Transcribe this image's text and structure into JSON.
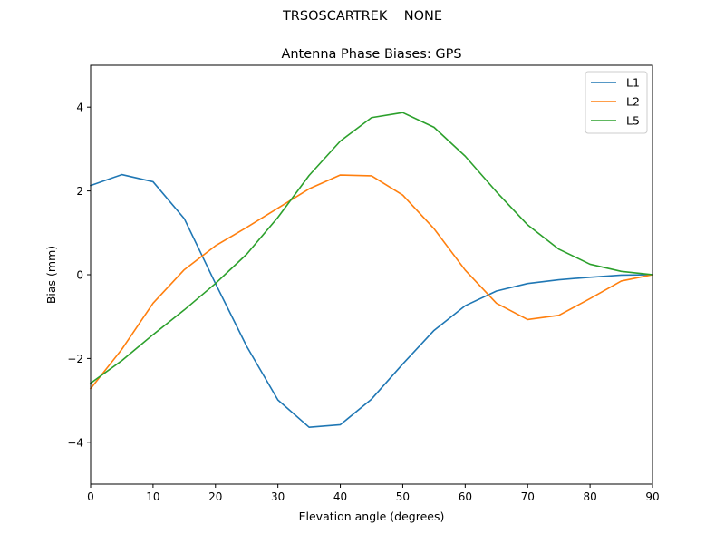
{
  "figure": {
    "suptitle": "TRSOSCARTREK    NONE"
  },
  "chart_data": {
    "type": "line",
    "title": "Antenna Phase Biases: GPS",
    "xlabel": "Elevation angle (degrees)",
    "ylabel": "Bias (mm)",
    "xlim": [
      0,
      90
    ],
    "ylim": [
      -5,
      5
    ],
    "xticks": [
      0,
      10,
      20,
      30,
      40,
      50,
      60,
      70,
      80,
      90
    ],
    "yticks": [
      -4,
      -2,
      0,
      2,
      4
    ],
    "ytick_labels": [
      "−4",
      "−2",
      "0",
      "2",
      "4"
    ],
    "legend_position": "top-right",
    "grid": false,
    "x": [
      0,
      5,
      10,
      15,
      20,
      25,
      30,
      35,
      40,
      45,
      50,
      55,
      60,
      65,
      70,
      75,
      80,
      85,
      90
    ],
    "series": [
      {
        "name": "L1",
        "color": "#1f77b4",
        "values": [
          2.13,
          2.39,
          2.22,
          1.34,
          -0.21,
          -1.71,
          -2.99,
          -3.64,
          -3.58,
          -2.97,
          -2.13,
          -1.33,
          -0.74,
          -0.39,
          -0.21,
          -0.12,
          -0.06,
          -0.01,
          0.0
        ]
      },
      {
        "name": "L2",
        "color": "#ff7f0e",
        "values": [
          -2.72,
          -1.78,
          -0.68,
          0.12,
          0.69,
          1.13,
          1.59,
          2.05,
          2.38,
          2.36,
          1.9,
          1.1,
          0.11,
          -0.68,
          -1.07,
          -0.97,
          -0.57,
          -0.15,
          0.0
        ]
      },
      {
        "name": "L5",
        "color": "#2ca02c",
        "values": [
          -2.59,
          -2.05,
          -1.43,
          -0.84,
          -0.21,
          0.49,
          1.37,
          2.37,
          3.19,
          3.75,
          3.87,
          3.52,
          2.83,
          1.98,
          1.19,
          0.61,
          0.25,
          0.08,
          0.0
        ]
      }
    ]
  }
}
